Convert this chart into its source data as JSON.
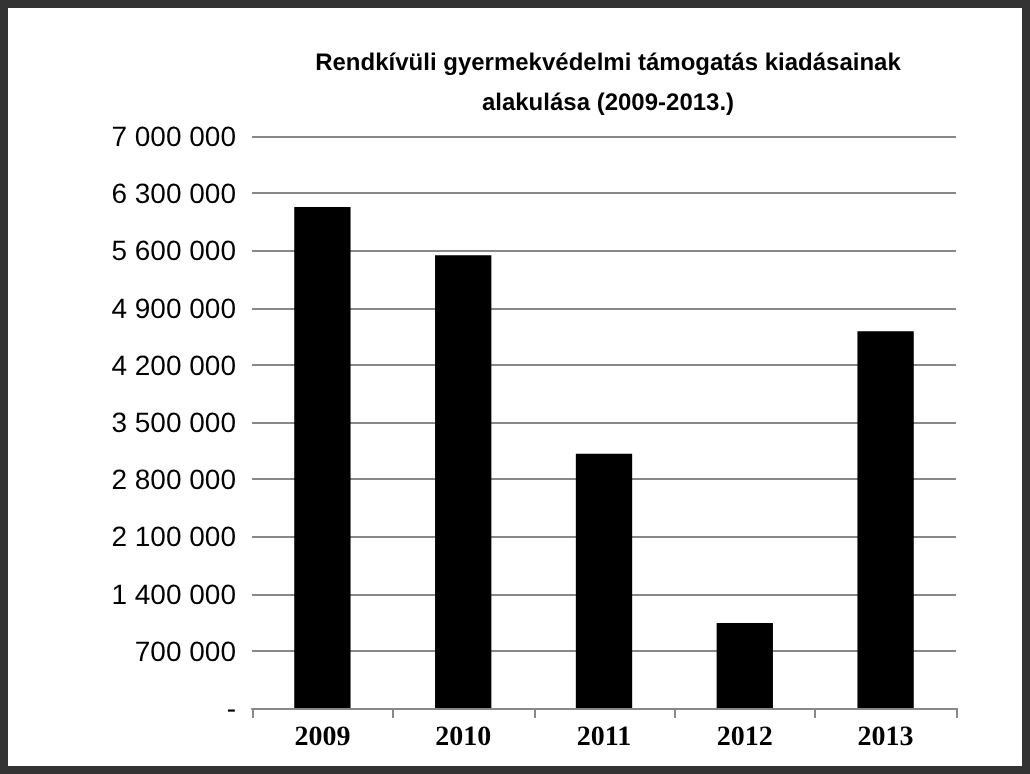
{
  "chart_data": {
    "type": "bar",
    "title": "Rendkívüli gyermekvédelmi támogatás kiadásainak\nalakulása (2009-2013.)",
    "categories": [
      "2009",
      "2010",
      "2011",
      "2012",
      "2013"
    ],
    "values": [
      6130000,
      5540000,
      3110000,
      1040000,
      4610000
    ],
    "color": "#000000",
    "ylim": [
      0,
      7000000
    ],
    "yticks": [
      {
        "value": 0,
        "label": "-"
      },
      {
        "value": 700000,
        "label": "700 000"
      },
      {
        "value": 1400000,
        "label": "1 400 000"
      },
      {
        "value": 2100000,
        "label": "2 100 000"
      },
      {
        "value": 2800000,
        "label": "2 800 000"
      },
      {
        "value": 3500000,
        "label": "3 500 000"
      },
      {
        "value": 4200000,
        "label": "4 200 000"
      },
      {
        "value": 4900000,
        "label": "4 900 000"
      },
      {
        "value": 5600000,
        "label": "5 600 000"
      },
      {
        "value": 6300000,
        "label": "6 300 000"
      },
      {
        "value": 7000000,
        "label": "7 000 000"
      }
    ],
    "grid": "y"
  }
}
